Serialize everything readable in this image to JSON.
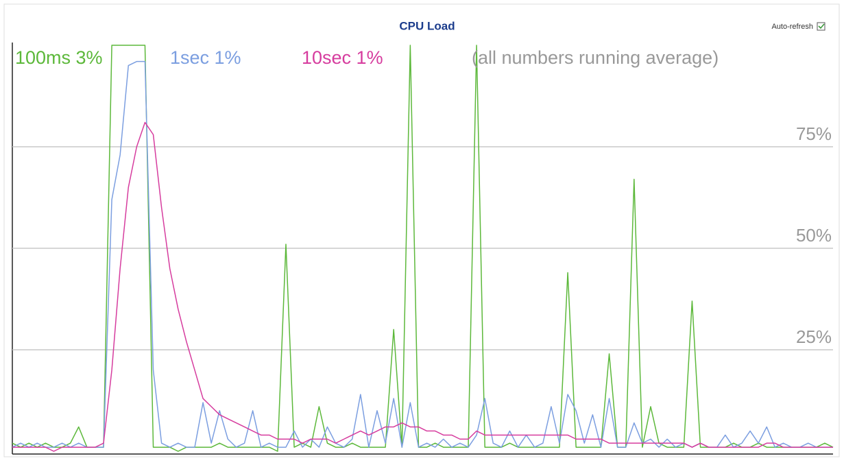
{
  "chart_data": {
    "type": "line",
    "title": "CPU Load",
    "annotation": "(all numbers running average)",
    "ylim": [
      0,
      100
    ],
    "yticks": [
      {
        "value": 25,
        "label": "25%"
      },
      {
        "value": 50,
        "label": "50%"
      },
      {
        "value": 75,
        "label": "75%"
      }
    ],
    "grid": true,
    "series": [
      {
        "name": "100ms 3%",
        "color": "#5cb83a",
        "values": [
          2,
          1,
          2,
          1,
          2,
          1,
          1,
          2,
          6,
          1,
          1,
          1,
          100,
          100,
          100,
          100,
          100,
          1,
          1,
          1,
          0,
          1,
          1,
          1,
          1,
          2,
          1,
          1,
          1,
          1,
          1,
          1,
          0,
          51,
          1,
          2,
          1,
          11,
          2,
          1,
          1,
          2,
          1,
          1,
          1,
          1,
          30,
          1,
          100,
          1,
          1,
          2,
          1,
          1,
          1,
          1,
          100,
          1,
          1,
          1,
          2,
          1,
          1,
          1,
          1,
          1,
          1,
          44,
          1,
          1,
          1,
          1,
          24,
          1,
          1,
          67,
          1,
          11,
          2,
          1,
          1,
          1,
          37,
          1,
          1,
          1,
          1,
          2,
          1,
          1,
          2,
          1,
          1,
          1,
          1,
          1,
          1,
          1,
          2,
          1
        ]
      },
      {
        "name": "1sec 1%",
        "color": "#7b9ee0",
        "values": [
          1,
          2,
          1,
          2,
          1,
          1,
          2,
          1,
          2,
          1,
          1,
          1,
          62,
          73,
          95,
          96,
          96,
          20,
          2,
          1,
          2,
          1,
          1,
          12,
          2,
          10,
          3,
          1,
          2,
          10,
          1,
          2,
          1,
          1,
          5,
          1,
          3,
          1,
          6,
          2,
          1,
          3,
          14,
          1,
          10,
          2,
          13,
          1,
          12,
          1,
          2,
          1,
          3,
          1,
          2,
          1,
          4,
          13,
          2,
          1,
          5,
          1,
          4,
          1,
          2,
          11,
          2,
          14,
          10,
          2,
          9,
          1,
          13,
          1,
          1,
          7,
          2,
          3,
          1,
          3,
          1,
          2,
          1,
          2,
          1,
          1,
          4,
          1,
          2,
          5,
          2,
          6,
          1,
          2,
          1,
          1,
          2,
          1,
          1,
          1
        ]
      },
      {
        "name": "10sec 1%",
        "color": "#d63c9e",
        "values": [
          1,
          1,
          1,
          1,
          1,
          0,
          1,
          1,
          1,
          1,
          1,
          2,
          20,
          45,
          65,
          75,
          81,
          78,
          60,
          45,
          35,
          27,
          20,
          13,
          11,
          9,
          8,
          7,
          6,
          5,
          4,
          4,
          3,
          3,
          3,
          2,
          3,
          3,
          3,
          2,
          3,
          4,
          5,
          4,
          5,
          6,
          6,
          7,
          6,
          6,
          5,
          5,
          4,
          4,
          3,
          3,
          5,
          4,
          4,
          4,
          4,
          4,
          4,
          4,
          4,
          4,
          4,
          4,
          3,
          3,
          3,
          3,
          2,
          2,
          2,
          2,
          2,
          2,
          2,
          2,
          2,
          2,
          1,
          2,
          1,
          1,
          1,
          1,
          1,
          1,
          1,
          2,
          2,
          1,
          1,
          1,
          1,
          1,
          1,
          1
        ]
      }
    ]
  },
  "controls": {
    "auto_refresh": "Auto-refresh"
  }
}
